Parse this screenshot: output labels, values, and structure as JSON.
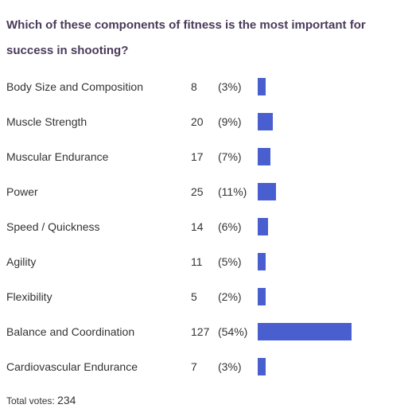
{
  "question": "Which of these components of fitness is the most important for success in shooting?",
  "chart_data": {
    "type": "bar",
    "orientation": "horizontal",
    "categories": [
      "Body Size and Composition",
      "Muscle Strength",
      "Muscular Endurance",
      "Power",
      "Speed / Quickness",
      "Agility",
      "Flexibility",
      "Balance and Coordination",
      "Cardiovascular Endurance"
    ],
    "values": [
      8,
      20,
      17,
      25,
      14,
      11,
      5,
      127,
      7
    ],
    "percent_labels": [
      "(3%)",
      "(9%)",
      "(7%)",
      "(11%)",
      "(6%)",
      "(5%)",
      "(2%)",
      "(54%)",
      "(3%)"
    ],
    "bar_color": "#4a5fcf"
  },
  "footer": {
    "total_label": "Total votes:",
    "total_value": "234"
  }
}
